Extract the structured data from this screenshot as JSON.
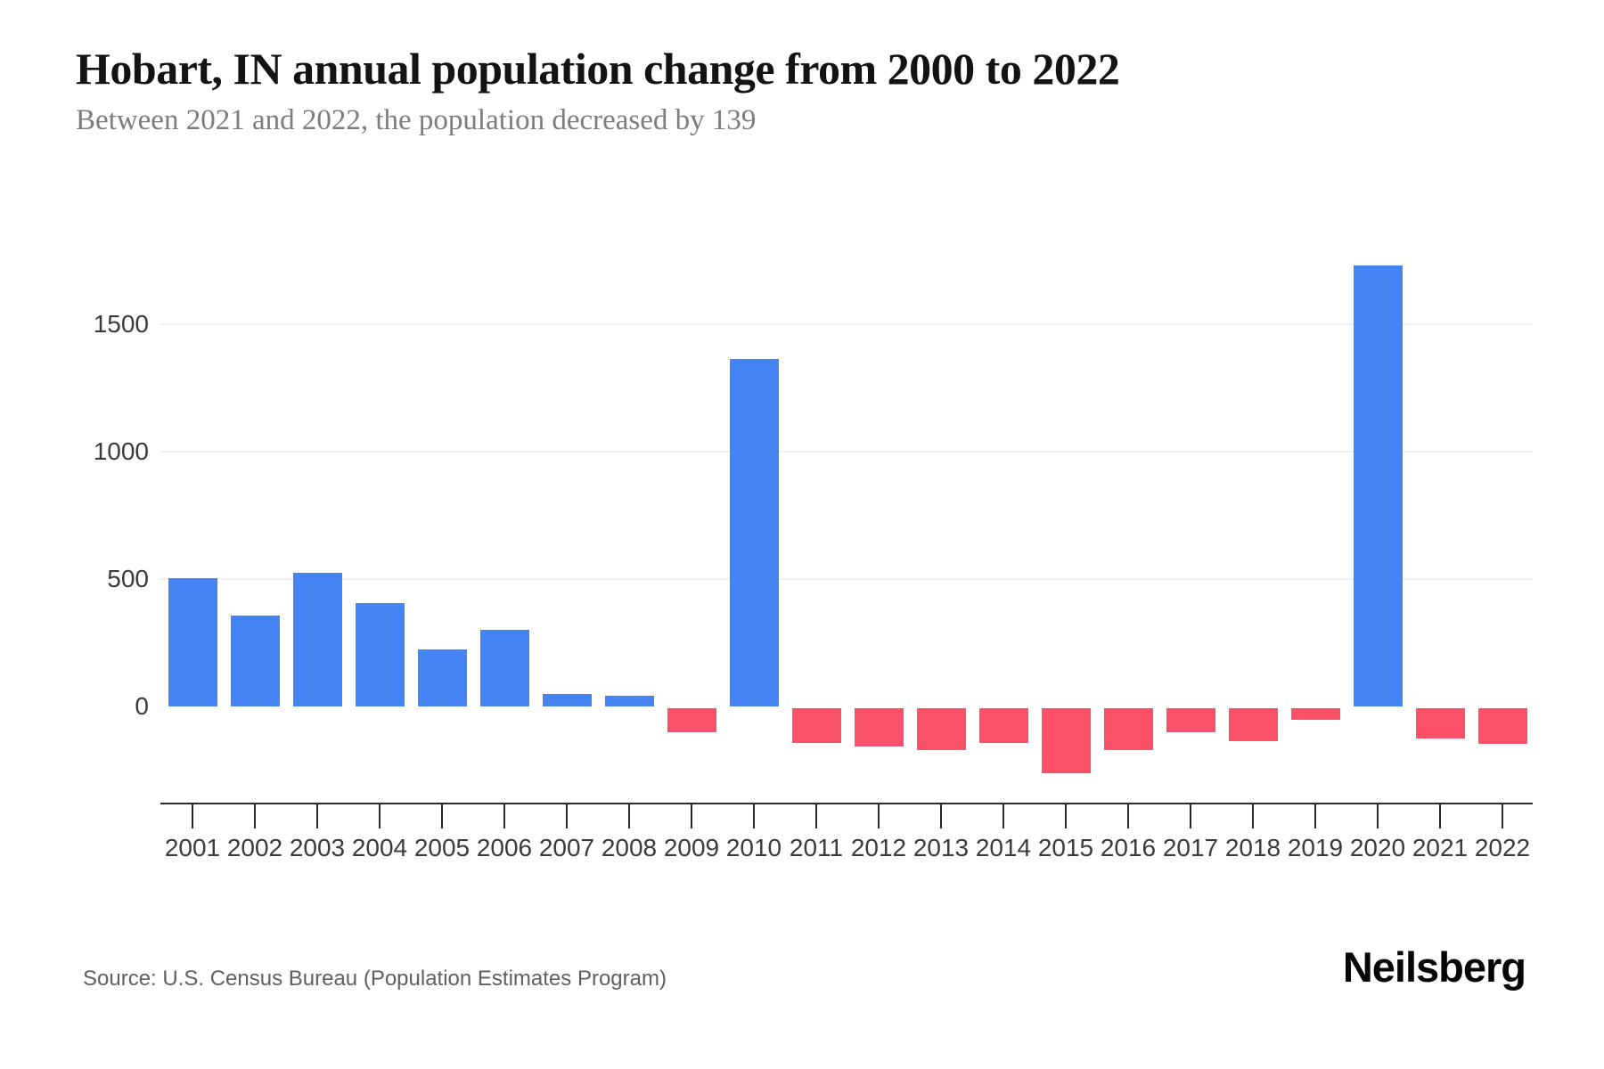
{
  "footer": {
    "source": "Source: U.S. Census Bureau (Population Estimates Program)",
    "logo": "Neilsberg"
  },
  "colors": {
    "positive_bar": "#4584F3",
    "negative_bar": "#FA5168",
    "gridline": "#F0F0F0",
    "axis": "#2B2B2B",
    "tick_label": "#3B3B3B",
    "title": "#131313",
    "subtitle": "#7D7D7D"
  },
  "chart_data": {
    "type": "bar",
    "title": "Hobart, IN annual population change from 2000 to 2022",
    "subtitle": "Between 2021 and 2022, the population decreased by 139",
    "categories": [
      "2001",
      "2002",
      "2003",
      "2004",
      "2005",
      "2006",
      "2007",
      "2008",
      "2009",
      "2010",
      "2011",
      "2012",
      "2013",
      "2014",
      "2015",
      "2016",
      "2017",
      "2018",
      "2019",
      "2020",
      "2021",
      "2022"
    ],
    "values": [
      505,
      355,
      525,
      405,
      225,
      300,
      50,
      42,
      -95,
      1365,
      -135,
      -150,
      -165,
      -135,
      -255,
      -165,
      -95,
      -130,
      -45,
      1730,
      -120,
      -139
    ],
    "xlabel": "",
    "ylabel": "",
    "y_ticks": [
      0,
      500,
      1000,
      1500
    ],
    "ylim": [
      -300,
      1800
    ],
    "grid": "horizontal",
    "legend_position": "none",
    "positive_color": "#4584F3",
    "negative_color": "#FA5168"
  }
}
